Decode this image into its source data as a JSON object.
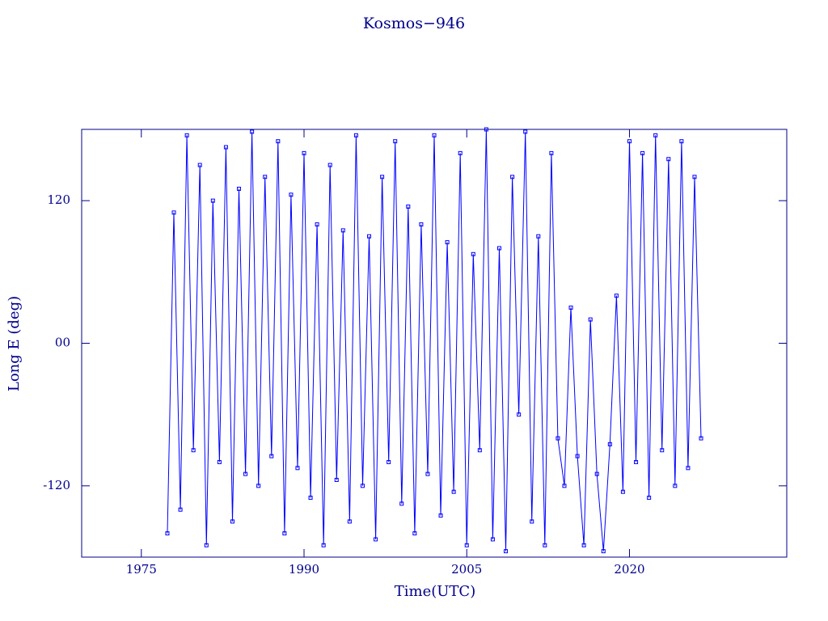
{
  "chart_data": {
    "type": "line",
    "title": "Kosmos−946",
    "xlabel": "Time(UTC)",
    "ylabel": "Long E (deg)",
    "xlim": [
      1969.5,
      2034.5
    ],
    "ylim": [
      -180,
      180
    ],
    "xticks": [
      1975,
      1990,
      2005,
      2020
    ],
    "yticks": [
      -120,
      {
        "value": 0,
        "label": "00"
      },
      120
    ],
    "series": [
      {
        "color": "#0000ff",
        "x": [
          1977.4,
          1978.0,
          1978.6,
          1979.2,
          1979.8,
          1980.4,
          1981.0,
          1981.6,
          1982.2,
          1982.8,
          1983.4,
          1984.0,
          1984.6,
          1985.2,
          1985.8,
          1986.4,
          1987.0,
          1987.6,
          1988.2,
          1988.8,
          1989.4,
          1990.0,
          1990.6,
          1991.2,
          1991.8,
          1992.4,
          1993.0,
          1993.6,
          1994.2,
          1994.8,
          1995.4,
          1996.0,
          1996.6,
          1997.2,
          1997.8,
          1998.4,
          1999.0,
          1999.6,
          2000.2,
          2000.8,
          2001.4,
          2002.0,
          2002.6,
          2003.2,
          2003.8,
          2004.4,
          2005.0,
          2005.6,
          2006.2,
          2006.8,
          2007.4,
          2008.0,
          2008.6,
          2009.2,
          2009.8,
          2010.4,
          2011.0,
          2011.6,
          2012.2,
          2012.8,
          2013.4,
          2014.0,
          2014.6,
          2015.2,
          2015.8,
          2016.4,
          2017.0,
          2017.6,
          2018.2,
          2018.8,
          2019.4,
          2020.0,
          2020.6,
          2021.2,
          2021.8,
          2022.4,
          2023.0,
          2023.6,
          2024.2,
          2024.8,
          2025.4,
          2026.0,
          2026.6
        ],
        "values": [
          -160,
          110,
          -140,
          175,
          -90,
          150,
          -170,
          120,
          -100,
          165,
          -150,
          130,
          -110,
          178,
          -120,
          140,
          -95,
          170,
          -160,
          125,
          -105,
          160,
          -130,
          100,
          -170,
          150,
          -115,
          95,
          -150,
          175,
          -120,
          90,
          -165,
          140,
          -100,
          170,
          -135,
          115,
          -160,
          100,
          -110,
          175,
          -145,
          85,
          -125,
          160,
          -170,
          75,
          -90,
          180,
          -165,
          80,
          -175,
          140,
          -60,
          178,
          -150,
          90,
          -170,
          160,
          -80,
          -120,
          30,
          -95,
          -170,
          20,
          -110,
          -175,
          -85,
          40,
          -125,
          170,
          -100,
          160,
          -130,
          175,
          -90,
          155,
          -120,
          170,
          -105,
          140,
          -80
        ]
      }
    ]
  }
}
